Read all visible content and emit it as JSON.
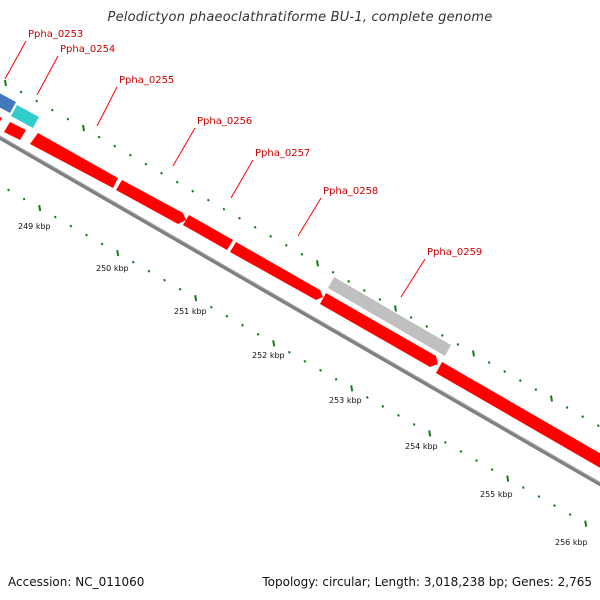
{
  "title": "Pelodictyon phaeoclathratiforme BU-1, complete genome",
  "footer": {
    "accession": "Accession: NC_011060",
    "summary": "Topology: circular; Length: 3,018,238 bp; Genes: 2,765"
  },
  "colors": {
    "gene_red": "#ff0000",
    "gene_cyan": "#33cccc",
    "gene_blue": "#4477bb",
    "gene_gray": "#c0c0c0",
    "tick_green": "#1a7a1a",
    "leader_red": "#ff0000",
    "backbone": "#808080"
  },
  "gene_labels": [
    "Ppha_0253",
    "Ppha_0254",
    "Ppha_0255",
    "Ppha_0256",
    "Ppha_0257",
    "Ppha_0258",
    "Ppha_0259"
  ],
  "kbp_labels": [
    "249 kbp",
    "250 kbp",
    "251 kbp",
    "252 kbp",
    "253 kbp",
    "254 kbp",
    "255 kbp",
    "256 kbp"
  ]
}
